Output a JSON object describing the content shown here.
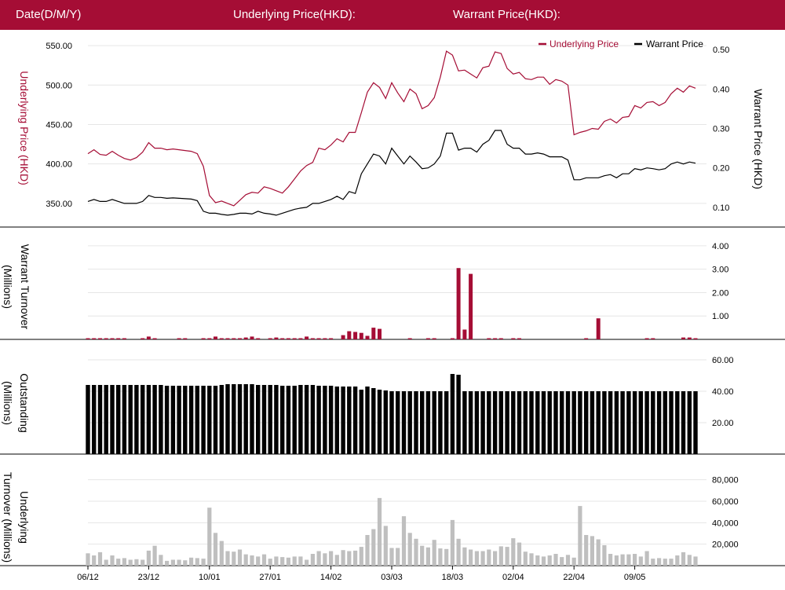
{
  "header": {
    "date_label": "Date(D/M/Y)",
    "underlying_label": "Underlying Price(HKD):",
    "warrant_label": "Warrant Price(HKD):"
  },
  "colors": {
    "brand": "#a50d35",
    "underlying": "#a50d35",
    "warrant": "#000000",
    "turnover_bar": "#a50d35",
    "outstanding_bar": "#000000",
    "underlying_turnover_bar": "#bfbfbf",
    "grid": "#e6e6e6"
  },
  "chart_data": [
    {
      "type": "line",
      "legend": [
        "Underlying Price",
        "Warrant Price"
      ],
      "legend_position": "top-right",
      "ylabel_left": "Underlying Price (HKD)",
      "ylabel_right": "Warrant  Price (HKD)",
      "yticks_left": [
        "550.00",
        "500.00",
        "450.00",
        "400.00",
        "350.00"
      ],
      "yticks_right": [
        "0.50",
        "0.40",
        "0.30",
        "0.20",
        "0.10"
      ],
      "ylim_left": [
        320,
        570
      ],
      "ylim_right": [
        0.05,
        0.55
      ],
      "grid": true,
      "series": [
        {
          "name": "Underlying Price",
          "axis": "left",
          "values": [
            413,
            418,
            412,
            411,
            416,
            411,
            407,
            405,
            408,
            415,
            427,
            420,
            420,
            418,
            419,
            418,
            417,
            416,
            413,
            397,
            360,
            351,
            353,
            350,
            347,
            354,
            361,
            364,
            363,
            371,
            369,
            366,
            363,
            371,
            381,
            391,
            398,
            402,
            420,
            418,
            424,
            432,
            428,
            440,
            440,
            465,
            491,
            503,
            497,
            483,
            503,
            490,
            479,
            495,
            489,
            470,
            474,
            484,
            510,
            543,
            538,
            518,
            519,
            514,
            509,
            522,
            524,
            542,
            540,
            521,
            514,
            516,
            508,
            507,
            510,
            510,
            501,
            507,
            505,
            500,
            437,
            440,
            442,
            445,
            444,
            454,
            457,
            452,
            459,
            460,
            474,
            471,
            478,
            479,
            474,
            478,
            489,
            496,
            491,
            499,
            496
          ]
        },
        {
          "name": "Warrant Price",
          "axis": "right",
          "values": [
            0.115,
            0.12,
            0.115,
            0.115,
            0.12,
            0.115,
            0.11,
            0.11,
            0.11,
            0.115,
            0.13,
            0.125,
            0.125,
            0.123,
            0.124,
            0.123,
            0.122,
            0.121,
            0.117,
            0.09,
            0.085,
            0.085,
            0.082,
            0.08,
            0.082,
            0.085,
            0.085,
            0.083,
            0.09,
            0.085,
            0.083,
            0.08,
            0.085,
            0.09,
            0.095,
            0.098,
            0.1,
            0.11,
            0.11,
            0.115,
            0.12,
            0.128,
            0.12,
            0.14,
            0.135,
            0.185,
            0.21,
            0.235,
            0.23,
            0.21,
            0.25,
            0.23,
            0.21,
            0.23,
            0.215,
            0.198,
            0.2,
            0.21,
            0.23,
            0.288,
            0.288,
            0.245,
            0.25,
            0.25,
            0.24,
            0.26,
            0.27,
            0.295,
            0.295,
            0.26,
            0.25,
            0.25,
            0.235,
            0.235,
            0.238,
            0.235,
            0.228,
            0.228,
            0.228,
            0.22,
            0.17,
            0.17,
            0.175,
            0.175,
            0.175,
            0.18,
            0.183,
            0.175,
            0.185,
            0.185,
            0.198,
            0.195,
            0.2,
            0.198,
            0.195,
            0.198,
            0.21,
            0.215,
            0.21,
            0.215,
            0.212
          ]
        }
      ]
    },
    {
      "type": "bar",
      "ylabel": "Warrant  Turnover (Millions)",
      "yticks": [
        "4.00",
        "3.00",
        "2.00",
        "1.00"
      ],
      "ylim": [
        0,
        4.5
      ],
      "grid": true,
      "values": [
        0.05,
        0.05,
        0.05,
        0.05,
        0.05,
        0.05,
        0.05,
        0,
        0,
        0.05,
        0.12,
        0.05,
        0,
        0,
        0,
        0.05,
        0.05,
        0,
        0,
        0.05,
        0.05,
        0.12,
        0.05,
        0.05,
        0.05,
        0.05,
        0.08,
        0.12,
        0.05,
        0,
        0.05,
        0.08,
        0.05,
        0.05,
        0.05,
        0.05,
        0.12,
        0.05,
        0.05,
        0.05,
        0.05,
        0,
        0.18,
        0.35,
        0.32,
        0.28,
        0.15,
        0.5,
        0.45,
        0,
        0,
        0,
        0,
        0.05,
        0,
        0,
        0.05,
        0.05,
        0,
        0,
        0.05,
        3.05,
        0.42,
        2.8,
        0,
        0,
        0.05,
        0.05,
        0.05,
        0,
        0.05,
        0.05,
        0,
        0,
        0,
        0,
        0,
        0,
        0,
        0,
        0,
        0,
        0.05,
        0,
        0.9,
        0,
        0,
        0,
        0,
        0,
        0,
        0,
        0.05,
        0.05,
        0,
        0,
        0,
        0,
        0.08,
        0.08,
        0.05
      ]
    },
    {
      "type": "bar",
      "ylabel": "Outstanding (Millions)",
      "yticks": [
        "60.00",
        "40.00",
        "20.00"
      ],
      "ylim": [
        0,
        65
      ],
      "grid": true,
      "values": [
        44,
        44,
        44,
        44,
        44,
        44,
        44,
        44,
        44,
        44,
        44,
        44,
        44,
        43.5,
        43.5,
        43.5,
        43.5,
        43.5,
        43.5,
        43.5,
        43.5,
        43.5,
        44,
        44.5,
        44.5,
        44.5,
        44.5,
        44.5,
        44,
        44,
        44,
        44,
        43.5,
        43.5,
        43.5,
        44,
        44,
        44,
        43.5,
        43.5,
        43.5,
        43,
        43,
        43,
        43,
        41,
        43,
        42,
        41,
        40.5,
        40,
        40,
        40,
        40,
        40,
        40,
        40,
        40,
        40,
        40,
        51,
        50.5,
        40,
        40,
        40,
        40,
        40,
        40,
        40,
        40,
        40,
        40,
        40,
        40,
        40,
        40,
        40,
        40,
        40,
        40,
        40,
        40,
        40,
        40,
        40,
        40,
        40,
        40,
        40,
        40,
        40,
        40,
        40,
        40,
        40,
        40,
        40,
        40,
        40,
        40,
        40
      ]
    },
    {
      "type": "bar",
      "ylabel": "Underlying Turnover (Millions)",
      "yticks": [
        "80,000",
        "60,000",
        "40,000",
        "20,000"
      ],
      "ylim": [
        0,
        90000
      ],
      "grid": true,
      "values": [
        11500,
        9500,
        12500,
        5500,
        9500,
        6500,
        7000,
        5500,
        6000,
        5500,
        14000,
        18500,
        10000,
        4500,
        5500,
        5500,
        5000,
        7500,
        7000,
        6500,
        54000,
        30500,
        23000,
        13500,
        13000,
        15000,
        10500,
        9500,
        8500,
        10500,
        6500,
        8500,
        8000,
        7500,
        8500,
        8500,
        5500,
        11000,
        13500,
        11500,
        13500,
        10000,
        14500,
        13500,
        14000,
        17500,
        28500,
        34000,
        63000,
        37000,
        16500,
        16500,
        46000,
        30500,
        25000,
        18500,
        17000,
        24000,
        16000,
        15500,
        42500,
        25000,
        17000,
        15000,
        13500,
        13500,
        15000,
        13500,
        18000,
        17500,
        25500,
        21500,
        13000,
        11500,
        9500,
        8500,
        9500,
        11000,
        8000,
        10000,
        7500,
        55500,
        28500,
        27500,
        24500,
        19000,
        11000,
        9500,
        10500,
        10500,
        11000,
        8500,
        13500,
        6500,
        7000,
        6500,
        6500,
        9500,
        12500,
        10000,
        8500
      ]
    },
    {
      "type": "bar",
      "role": "shared-x-axis",
      "xticks": [
        "06/12",
        "23/12",
        "10/01",
        "27/01",
        "14/02",
        "03/03",
        "18/03",
        "02/04",
        "22/04",
        "09/05"
      ],
      "xtick_index": [
        0,
        10,
        20,
        30,
        40,
        50,
        60,
        70,
        80,
        90
      ]
    }
  ]
}
